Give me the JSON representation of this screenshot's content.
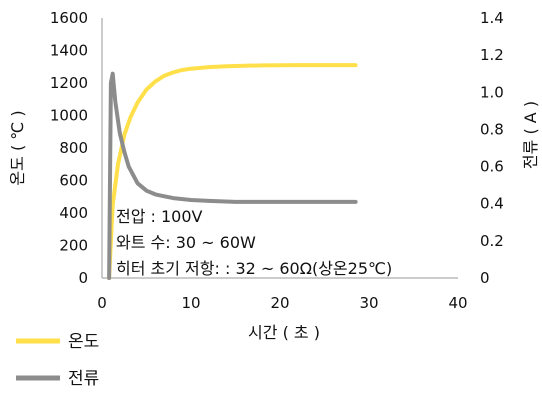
{
  "chart_data": {
    "type": "line",
    "xlabel": "시간 ( 초 )",
    "ylabel_left": "온도 ( ℃ )",
    "ylabel_right": "전류 ( A )",
    "xlim": [
      0,
      40
    ],
    "ylim_left": [
      0,
      1600
    ],
    "ylim_right": [
      0,
      1.4
    ],
    "x_ticks": [
      "0",
      "10",
      "20",
      "30",
      "40"
    ],
    "y_left_ticks": [
      "0",
      "200",
      "400",
      "600",
      "800",
      "1000",
      "1200",
      "1400",
      "1600"
    ],
    "y_right_ticks": [
      "0",
      "0.2",
      "0.4",
      "0.6",
      "0.8",
      "1.0",
      "1.2",
      "1.4"
    ],
    "grid": false,
    "legend_position": "bottom-left",
    "annotations": [
      "전압 : 100V",
      "와트 수: 30 ~ 60W",
      "히터 초기 저항: : 32 ~ 60Ω(상온25℃)"
    ],
    "series": [
      {
        "name": "온도",
        "axis": "left",
        "color": "#FFE04A",
        "x": [
          0.8,
          1.2,
          1.8,
          2.5,
          3.2,
          4,
          5,
          6,
          7,
          8,
          9,
          10,
          12,
          14,
          16,
          18,
          20,
          22,
          24,
          26,
          28.5
        ],
        "y": [
          0,
          450,
          700,
          880,
          990,
          1080,
          1160,
          1210,
          1245,
          1265,
          1280,
          1288,
          1298,
          1303,
          1306,
          1308,
          1309,
          1310,
          1310,
          1310,
          1310
        ]
      },
      {
        "name": "전류",
        "axis": "right",
        "color": "#8C8C8C",
        "x": [
          0.8,
          1,
          1.2,
          1.5,
          2,
          2.5,
          3,
          4,
          5,
          6,
          7,
          8,
          10,
          12,
          15,
          18,
          20,
          24,
          28.5
        ],
        "y": [
          0,
          1.05,
          1.1,
          0.95,
          0.78,
          0.68,
          0.6,
          0.51,
          0.47,
          0.45,
          0.44,
          0.43,
          0.42,
          0.415,
          0.41,
          0.41,
          0.41,
          0.41,
          0.41
        ]
      }
    ]
  }
}
